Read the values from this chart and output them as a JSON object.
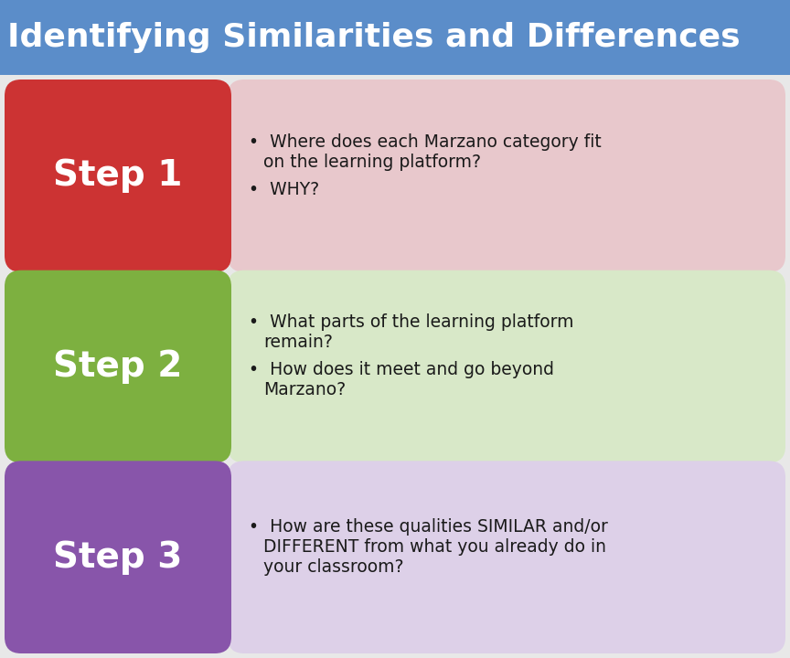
{
  "title": "Identifying Similarities and Differences",
  "title_bg": "#5b8dc9",
  "title_color": "#ffffff",
  "title_fontsize": 26,
  "bg_color": "#e8e8e8",
  "steps": [
    {
      "label": "Step 1",
      "label_color": "#ffffff",
      "box_color": "#cc3333",
      "bg_color": "#e8c8cc",
      "bullets": [
        {
          "first": "Where does each Marzano category fit",
          "cont": [
            "on the learning platform?"
          ]
        },
        {
          "first": "WHY?",
          "cont": []
        }
      ]
    },
    {
      "label": "Step 2",
      "label_color": "#ffffff",
      "box_color": "#7db040",
      "bg_color": "#d8e8c8",
      "bullets": [
        {
          "first": "What parts of the learning platform",
          "cont": [
            "remain?"
          ]
        },
        {
          "first": "How does it meet and go beyond",
          "cont": [
            "Marzano?"
          ]
        }
      ]
    },
    {
      "label": "Step 3",
      "label_color": "#ffffff",
      "box_color": "#8855aa",
      "bg_color": "#ddd0e8",
      "bullets": [
        {
          "first": "How are these qualities SIMILAR and/or",
          "cont": [
            "DIFFERENT from what you already do in",
            "your classroom?"
          ]
        }
      ]
    }
  ]
}
